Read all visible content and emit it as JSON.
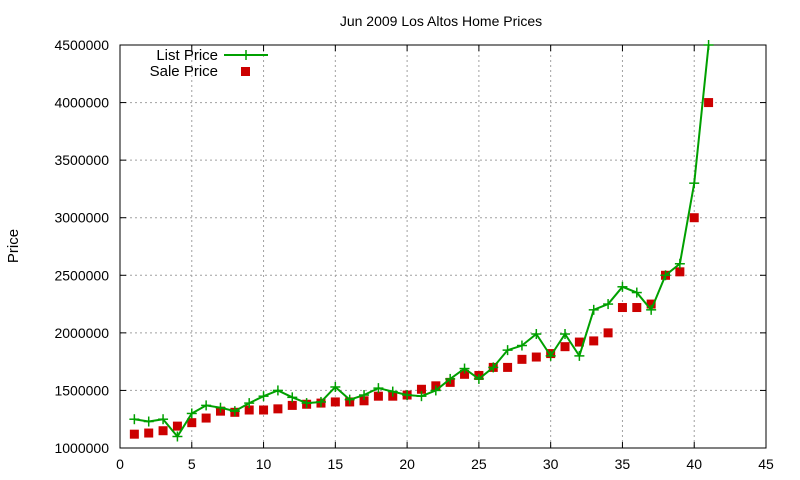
{
  "chart_data": {
    "type": "line",
    "title": "Jun 2009 Los Altos Home Prices",
    "xlabel": "",
    "ylabel": "Price",
    "xlim": [
      0,
      45
    ],
    "ylim": [
      1000000,
      4500000
    ],
    "x_ticks": [
      0,
      5,
      10,
      15,
      20,
      25,
      30,
      35,
      40,
      45
    ],
    "y_ticks": [
      1000000,
      1500000,
      2000000,
      2500000,
      3000000,
      3500000,
      4000000,
      4500000
    ],
    "grid": true,
    "legend_position": "top-left",
    "series": [
      {
        "name": "List Price",
        "style": "line-plus",
        "color": "#00a000",
        "x": [
          1,
          2,
          3,
          4,
          5,
          6,
          7,
          8,
          9,
          10,
          11,
          12,
          13,
          14,
          15,
          16,
          17,
          18,
          19,
          20,
          21,
          22,
          23,
          24,
          25,
          26,
          27,
          28,
          29,
          30,
          31,
          32,
          33,
          34,
          35,
          36,
          37,
          38,
          39,
          40,
          41
        ],
        "values": [
          1250000,
          1230000,
          1250000,
          1100000,
          1300000,
          1370000,
          1350000,
          1320000,
          1390000,
          1450000,
          1500000,
          1440000,
          1390000,
          1400000,
          1530000,
          1420000,
          1460000,
          1520000,
          1490000,
          1460000,
          1450000,
          1500000,
          1600000,
          1690000,
          1600000,
          1700000,
          1850000,
          1890000,
          1990000,
          1800000,
          1990000,
          1800000,
          2200000,
          2250000,
          2400000,
          2350000,
          2200000,
          2500000,
          2600000,
          3300000,
          4500000
        ]
      },
      {
        "name": "Sale Price",
        "style": "square-markers",
        "color": "#cc0000",
        "x": [
          1,
          2,
          3,
          4,
          5,
          6,
          7,
          8,
          9,
          10,
          11,
          12,
          13,
          14,
          15,
          16,
          17,
          18,
          19,
          20,
          21,
          22,
          23,
          24,
          25,
          26,
          27,
          28,
          29,
          30,
          31,
          32,
          33,
          34,
          35,
          36,
          37,
          38,
          39,
          40,
          41
        ],
        "values": [
          1120000,
          1130000,
          1150000,
          1190000,
          1220000,
          1260000,
          1320000,
          1310000,
          1330000,
          1330000,
          1340000,
          1370000,
          1380000,
          1390000,
          1400000,
          1400000,
          1410000,
          1450000,
          1450000,
          1460000,
          1510000,
          1540000,
          1570000,
          1640000,
          1630000,
          1700000,
          1700000,
          1770000,
          1790000,
          1820000,
          1880000,
          1920000,
          1930000,
          2000000,
          2220000,
          2220000,
          2250000,
          2500000,
          2530000,
          3000000,
          4000000
        ]
      }
    ]
  }
}
